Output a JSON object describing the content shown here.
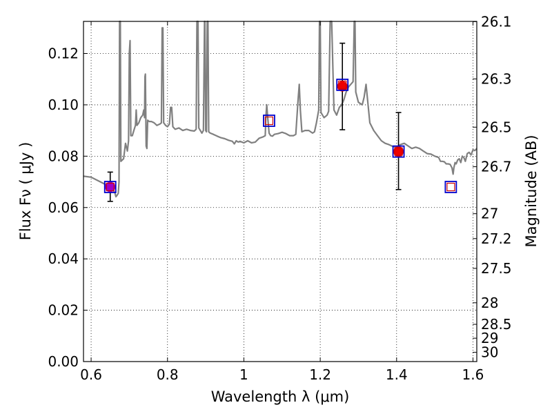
{
  "chart_data": {
    "type": "scatter",
    "xlabel": "Wavelength  λ (μm)",
    "ylabel": "Flux  Fν  ( μJy )",
    "y2label": "Magnitude (AB)",
    "xlim": [
      0.58,
      1.61
    ],
    "ylim": [
      0.0,
      0.1325
    ],
    "grid": true,
    "x_ticks": [
      0.6,
      0.8,
      1.0,
      1.2,
      1.4,
      1.6
    ],
    "x_tick_labels": [
      "0.6",
      "0.8",
      "1",
      "1.2",
      "1.4",
      "1.6"
    ],
    "y_ticks": [
      0.0,
      0.02,
      0.04,
      0.06,
      0.08,
      0.1,
      0.12
    ],
    "y_tick_labels": [
      "0.00",
      "0.02",
      "0.04",
      "0.06",
      "0.08",
      "0.10",
      "0.12"
    ],
    "mag_ticks": [
      {
        "label": "26.1",
        "flux": 0.1324
      },
      {
        "label": "26.3",
        "flux": 0.1101
      },
      {
        "label": "26.5",
        "flux": 0.0913
      },
      {
        "label": "26.7",
        "flux": 0.0759
      },
      {
        "label": "27",
        "flux": 0.0576
      },
      {
        "label": "27.2",
        "flux": 0.0479
      },
      {
        "label": "27.5",
        "flux": 0.0363
      },
      {
        "label": "28",
        "flux": 0.0229
      },
      {
        "label": "28.5",
        "flux": 0.0145
      },
      {
        "label": "29",
        "flux": 0.0091
      },
      {
        "label": "30",
        "flux": 0.0036
      }
    ],
    "model_spectrum": {
      "color": "#808080",
      "points": [
        [
          0.58,
          0.0722
        ],
        [
          0.6,
          0.0718
        ],
        [
          0.62,
          0.0703
        ],
        [
          0.64,
          0.0688
        ],
        [
          0.655,
          0.0672
        ],
        [
          0.662,
          0.0658
        ],
        [
          0.665,
          0.0642
        ],
        [
          0.668,
          0.0648
        ],
        [
          0.671,
          0.0655
        ],
        [
          0.673,
          0.07
        ],
        [
          0.6745,
          0.1325
        ],
        [
          0.6765,
          0.1325
        ],
        [
          0.678,
          0.078
        ],
        [
          0.685,
          0.079
        ],
        [
          0.69,
          0.085
        ],
        [
          0.695,
          0.082
        ],
        [
          0.698,
          0.086
        ],
        [
          0.7,
          0.12
        ],
        [
          0.702,
          0.125
        ],
        [
          0.704,
          0.088
        ],
        [
          0.708,
          0.088
        ],
        [
          0.712,
          0.09
        ],
        [
          0.716,
          0.092
        ],
        [
          0.718,
          0.098
        ],
        [
          0.72,
          0.092
        ],
        [
          0.725,
          0.093
        ],
        [
          0.73,
          0.095
        ],
        [
          0.735,
          0.096
        ],
        [
          0.738,
          0.098
        ],
        [
          0.74,
          0.095
        ],
        [
          0.741,
          0.111
        ],
        [
          0.742,
          0.112
        ],
        [
          0.744,
          0.084
        ],
        [
          0.746,
          0.083
        ],
        [
          0.748,
          0.094
        ],
        [
          0.752,
          0.0935
        ],
        [
          0.758,
          0.0935
        ],
        [
          0.765,
          0.093
        ],
        [
          0.772,
          0.092
        ],
        [
          0.78,
          0.0925
        ],
        [
          0.784,
          0.093
        ],
        [
          0.786,
          0.13
        ],
        [
          0.788,
          0.13
        ],
        [
          0.79,
          0.093
        ],
        [
          0.795,
          0.092
        ],
        [
          0.8,
          0.0915
        ],
        [
          0.805,
          0.0925
        ],
        [
          0.808,
          0.099
        ],
        [
          0.811,
          0.099
        ],
        [
          0.814,
          0.0915
        ],
        [
          0.82,
          0.0905
        ],
        [
          0.83,
          0.091
        ],
        [
          0.84,
          0.09
        ],
        [
          0.85,
          0.0905
        ],
        [
          0.86,
          0.09
        ],
        [
          0.87,
          0.0898
        ],
        [
          0.875,
          0.0905
        ],
        [
          0.877,
          0.1325
        ],
        [
          0.88,
          0.1325
        ],
        [
          0.882,
          0.091
        ],
        [
          0.886,
          0.09
        ],
        [
          0.89,
          0.089
        ],
        [
          0.894,
          0.09
        ],
        [
          0.897,
          0.1325
        ],
        [
          0.898,
          0.1325
        ],
        [
          0.9,
          0.09
        ],
        [
          0.902,
          0.0895
        ],
        [
          0.904,
          0.1325
        ],
        [
          0.906,
          0.1325
        ],
        [
          0.908,
          0.0895
        ],
        [
          0.912,
          0.089
        ],
        [
          0.92,
          0.0885
        ],
        [
          0.93,
          0.0878
        ],
        [
          0.94,
          0.0872
        ],
        [
          0.95,
          0.0868
        ],
        [
          0.96,
          0.0862
        ],
        [
          0.97,
          0.0858
        ],
        [
          0.975,
          0.0848
        ],
        [
          0.98,
          0.086
        ],
        [
          0.985,
          0.0855
        ],
        [
          0.99,
          0.0858
        ],
        [
          1.0,
          0.0852
        ],
        [
          1.01,
          0.086
        ],
        [
          1.02,
          0.0852
        ],
        [
          1.03,
          0.0855
        ],
        [
          1.04,
          0.087
        ],
        [
          1.05,
          0.0875
        ],
        [
          1.056,
          0.088
        ],
        [
          1.058,
          0.096
        ],
        [
          1.06,
          0.1
        ],
        [
          1.062,
          0.096
        ],
        [
          1.066,
          0.089
        ],
        [
          1.07,
          0.088
        ],
        [
          1.075,
          0.0878
        ],
        [
          1.08,
          0.0885
        ],
        [
          1.09,
          0.0888
        ],
        [
          1.1,
          0.0893
        ],
        [
          1.11,
          0.0888
        ],
        [
          1.12,
          0.088
        ],
        [
          1.13,
          0.088
        ],
        [
          1.136,
          0.0885
        ],
        [
          1.142,
          0.102
        ],
        [
          1.145,
          0.108
        ],
        [
          1.148,
          0.098
        ],
        [
          1.152,
          0.0895
        ],
        [
          1.16,
          0.09
        ],
        [
          1.17,
          0.09
        ],
        [
          1.18,
          0.089
        ],
        [
          1.185,
          0.0895
        ],
        [
          1.19,
          0.093
        ],
        [
          1.196,
          0.098
        ],
        [
          1.198,
          0.1325
        ],
        [
          1.2,
          0.1325
        ],
        [
          1.202,
          0.097
        ],
        [
          1.21,
          0.095
        ],
        [
          1.218,
          0.096
        ],
        [
          1.222,
          0.0975
        ],
        [
          1.226,
          0.1325
        ],
        [
          1.23,
          0.1325
        ],
        [
          1.236,
          0.098
        ],
        [
          1.243,
          0.096
        ],
        [
          1.25,
          0.099
        ],
        [
          1.256,
          0.1
        ],
        [
          1.262,
          0.102
        ],
        [
          1.268,
          0.105
        ],
        [
          1.274,
          0.107
        ],
        [
          1.28,
          0.108
        ],
        [
          1.286,
          0.109
        ],
        [
          1.289,
          0.1325
        ],
        [
          1.291,
          0.1325
        ],
        [
          1.293,
          0.105
        ],
        [
          1.3,
          0.101
        ],
        [
          1.31,
          0.1
        ],
        [
          1.315,
          0.103
        ],
        [
          1.318,
          0.106
        ],
        [
          1.32,
          0.108
        ],
        [
          1.322,
          0.105
        ],
        [
          1.33,
          0.093
        ],
        [
          1.34,
          0.09
        ],
        [
          1.35,
          0.088
        ],
        [
          1.36,
          0.086
        ],
        [
          1.37,
          0.085
        ],
        [
          1.38,
          0.0845
        ],
        [
          1.39,
          0.0838
        ],
        [
          1.4,
          0.0835
        ],
        [
          1.41,
          0.0845
        ],
        [
          1.42,
          0.085
        ],
        [
          1.43,
          0.084
        ],
        [
          1.44,
          0.083
        ],
        [
          1.45,
          0.0835
        ],
        [
          1.46,
          0.083
        ],
        [
          1.47,
          0.082
        ],
        [
          1.48,
          0.081
        ],
        [
          1.49,
          0.0808
        ],
        [
          1.5,
          0.08
        ],
        [
          1.51,
          0.0795
        ],
        [
          1.515,
          0.078
        ],
        [
          1.52,
          0.078
        ],
        [
          1.525,
          0.0778
        ],
        [
          1.53,
          0.077
        ],
        [
          1.535,
          0.077
        ],
        [
          1.54,
          0.0768
        ],
        [
          1.545,
          0.0755
        ],
        [
          1.548,
          0.073
        ],
        [
          1.55,
          0.0755
        ],
        [
          1.553,
          0.0775
        ],
        [
          1.556,
          0.077
        ],
        [
          1.56,
          0.0785
        ],
        [
          1.564,
          0.079
        ],
        [
          1.568,
          0.0775
        ],
        [
          1.572,
          0.08
        ],
        [
          1.576,
          0.0795
        ],
        [
          1.58,
          0.078
        ],
        [
          1.585,
          0.081
        ],
        [
          1.59,
          0.0815
        ],
        [
          1.595,
          0.0805
        ],
        [
          1.6,
          0.0825
        ],
        [
          1.605,
          0.0822
        ],
        [
          1.61,
          0.083
        ]
      ]
    },
    "model_boxes": {
      "edge_color": "#0000cc",
      "inner_color": "#cc0000",
      "points": [
        {
          "x": 0.65,
          "y": 0.068
        },
        {
          "x": 1.066,
          "y": 0.0938
        },
        {
          "x": 1.258,
          "y": 0.1078
        },
        {
          "x": 1.405,
          "y": 0.0818
        },
        {
          "x": 1.542,
          "y": 0.068
        }
      ]
    },
    "observations": [
      {
        "x": 0.65,
        "y": 0.068,
        "yerr_low": 0.0624,
        "yerr_high": 0.0738,
        "color": "#a000c8"
      },
      {
        "x": 1.258,
        "y": 0.1072,
        "yerr_low": 0.0903,
        "yerr_high": 0.124,
        "color": "#ee0000"
      },
      {
        "x": 1.405,
        "y": 0.0818,
        "yerr_low": 0.067,
        "yerr_high": 0.097,
        "color": "#ee0000"
      }
    ]
  }
}
